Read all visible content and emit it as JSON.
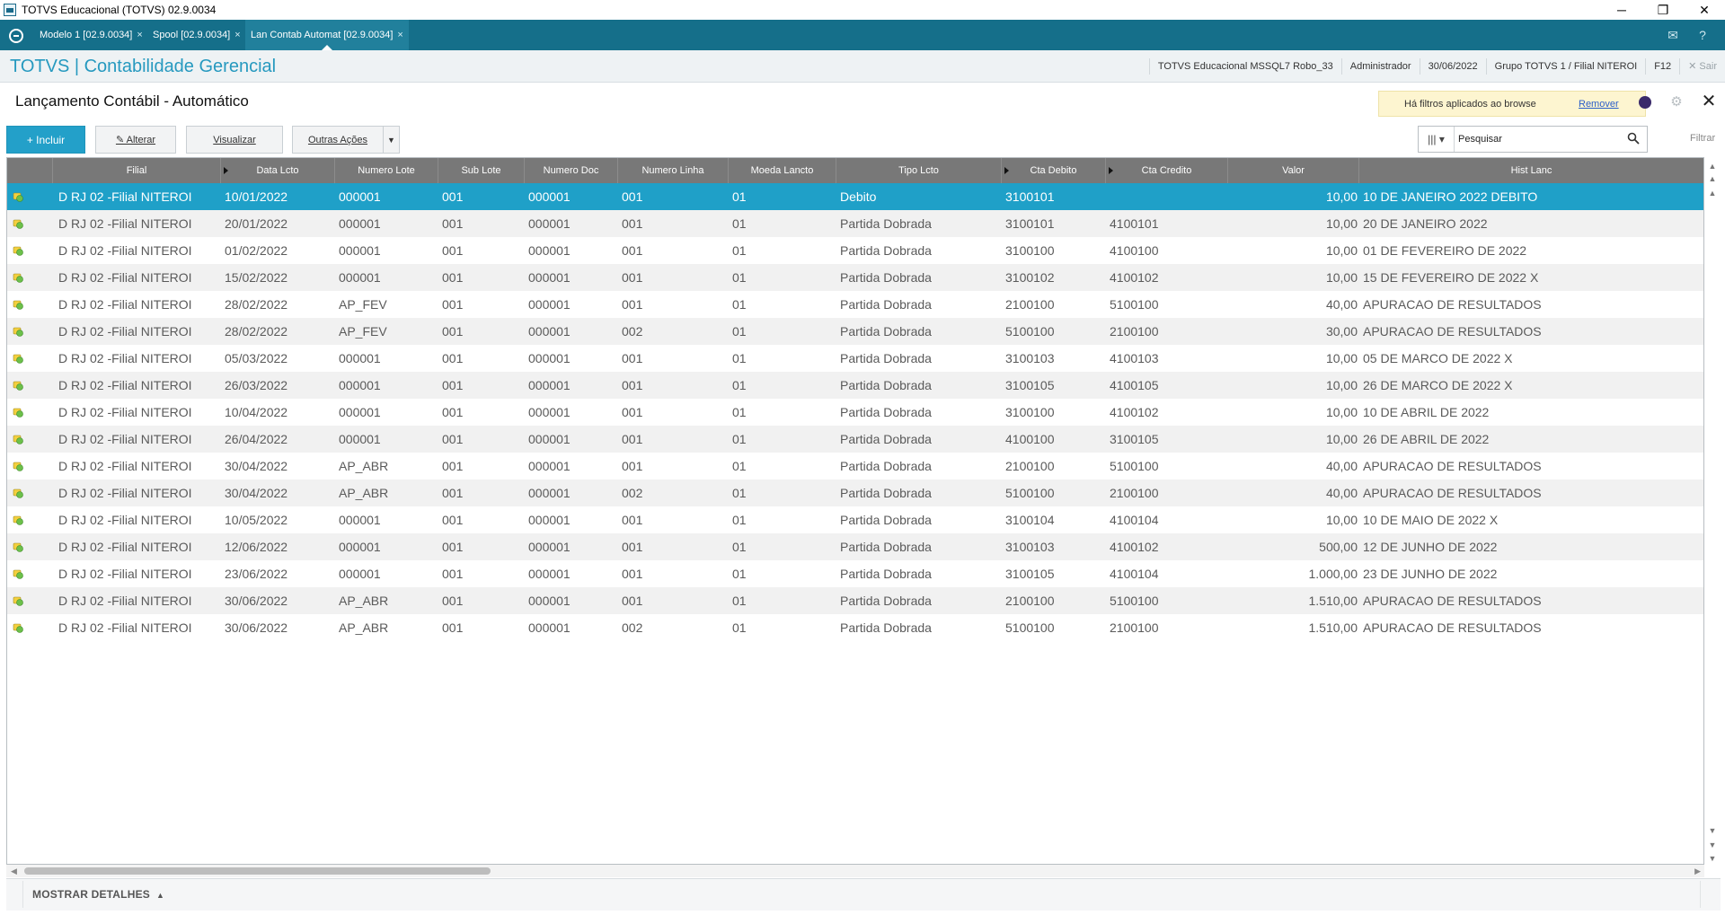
{
  "window": {
    "title": "TOTVS Educacional (TOTVS) 02.9.0034",
    "min": "─",
    "restore": "❐",
    "close": "✕"
  },
  "tabs": [
    {
      "label": "Modelo 1 [02.9.0034]",
      "close": "×"
    },
    {
      "label": "Spool [02.9.0034]",
      "close": "×"
    },
    {
      "label": "Lan Contab Automat [02.9.0034]",
      "close": "×"
    }
  ],
  "tabbar_icons": {
    "mail": "✉",
    "help": "?"
  },
  "module": {
    "brand": "TOTVS | Contabilidade Gerencial",
    "environment": "TOTVS Educacional MSSQL7 Robo_33",
    "user": "Administrador",
    "date": "30/06/2022",
    "branch": "Grupo TOTVS 1 / Filial NITEROI",
    "shortcut": "F12",
    "exit": "✕  Sair"
  },
  "page": {
    "title": "Lançamento Contábil - Automático",
    "filter_notice": "Há filtros aplicados ao browse",
    "filter_remove": "Remover",
    "gear": "⚙",
    "close": "✕"
  },
  "toolbar": {
    "include": "+ Incluir",
    "change": "✎ Alterar",
    "view": "Visualizar",
    "more": "Outras Ações",
    "more_caret": "▼",
    "column_selector": "|||  ▾",
    "search_placeholder": "Pesquisar",
    "filter": "Filtrar"
  },
  "grid": {
    "columns": [
      "",
      "Filial",
      "Data Lcto",
      "Numero Lote",
      "Sub Lote",
      "Numero Doc",
      "Numero Linha",
      "Moeda Lancto",
      "Tipo Lcto",
      "Cta Debito",
      "Cta Credito",
      "Valor",
      "Hist Lanc"
    ],
    "rows": [
      [
        "D RJ 02 -Filial NITEROI",
        "10/01/2022",
        "000001",
        "001",
        "000001",
        "001",
        "01",
        "Debito",
        "3100101",
        "",
        "10,00",
        "10 DE JANEIRO 2022 DEBITO"
      ],
      [
        "D RJ 02 -Filial NITEROI",
        "20/01/2022",
        "000001",
        "001",
        "000001",
        "001",
        "01",
        "Partida Dobrada",
        "3100101",
        "4100101",
        "10,00",
        "20 DE JANEIRO 2022"
      ],
      [
        "D RJ 02 -Filial NITEROI",
        "01/02/2022",
        "000001",
        "001",
        "000001",
        "001",
        "01",
        "Partida Dobrada",
        "3100100",
        "4100100",
        "10,00",
        "01 DE FEVEREIRO DE 2022"
      ],
      [
        "D RJ 02 -Filial NITEROI",
        "15/02/2022",
        "000001",
        "001",
        "000001",
        "001",
        "01",
        "Partida Dobrada",
        "3100102",
        "4100102",
        "10,00",
        "15 DE FEVEREIRO DE 2022 X"
      ],
      [
        "D RJ 02 -Filial NITEROI",
        "28/02/2022",
        "AP_FEV",
        "001",
        "000001",
        "001",
        "01",
        "Partida Dobrada",
        "2100100",
        "5100100",
        "40,00",
        "APURACAO DE RESULTADOS"
      ],
      [
        "D RJ 02 -Filial NITEROI",
        "28/02/2022",
        "AP_FEV",
        "001",
        "000001",
        "002",
        "01",
        "Partida Dobrada",
        "5100100",
        "2100100",
        "30,00",
        "APURACAO DE RESULTADOS"
      ],
      [
        "D RJ 02 -Filial NITEROI",
        "05/03/2022",
        "000001",
        "001",
        "000001",
        "001",
        "01",
        "Partida Dobrada",
        "3100103",
        "4100103",
        "10,00",
        "05 DE MARCO DE 2022 X"
      ],
      [
        "D RJ 02 -Filial NITEROI",
        "26/03/2022",
        "000001",
        "001",
        "000001",
        "001",
        "01",
        "Partida Dobrada",
        "3100105",
        "4100105",
        "10,00",
        "26 DE MARCO DE 2022 X"
      ],
      [
        "D RJ 02 -Filial NITEROI",
        "10/04/2022",
        "000001",
        "001",
        "000001",
        "001",
        "01",
        "Partida Dobrada",
        "3100100",
        "4100102",
        "10,00",
        "10 DE ABRIL DE 2022"
      ],
      [
        "D RJ 02 -Filial NITEROI",
        "26/04/2022",
        "000001",
        "001",
        "000001",
        "001",
        "01",
        "Partida Dobrada",
        "4100100",
        "3100105",
        "10,00",
        "26 DE ABRIL DE 2022"
      ],
      [
        "D RJ 02 -Filial NITEROI",
        "30/04/2022",
        "AP_ABR",
        "001",
        "000001",
        "001",
        "01",
        "Partida Dobrada",
        "2100100",
        "5100100",
        "40,00",
        "APURACAO DE RESULTADOS"
      ],
      [
        "D RJ 02 -Filial NITEROI",
        "30/04/2022",
        "AP_ABR",
        "001",
        "000001",
        "002",
        "01",
        "Partida Dobrada",
        "5100100",
        "2100100",
        "40,00",
        "APURACAO DE RESULTADOS"
      ],
      [
        "D RJ 02 -Filial NITEROI",
        "10/05/2022",
        "000001",
        "001",
        "000001",
        "001",
        "01",
        "Partida Dobrada",
        "3100104",
        "4100104",
        "10,00",
        "10 DE MAIO DE 2022 X"
      ],
      [
        "D RJ 02 -Filial NITEROI",
        "12/06/2022",
        "000001",
        "001",
        "000001",
        "001",
        "01",
        "Partida Dobrada",
        "3100103",
        "4100102",
        "500,00",
        "12 DE JUNHO DE 2022"
      ],
      [
        "D RJ 02 -Filial NITEROI",
        "23/06/2022",
        "000001",
        "001",
        "000001",
        "001",
        "01",
        "Partida Dobrada",
        "3100105",
        "4100104",
        "1.000,00",
        "23 DE JUNHO DE 2022"
      ],
      [
        "D RJ 02 -Filial NITEROI",
        "30/06/2022",
        "AP_ABR",
        "001",
        "000001",
        "001",
        "01",
        "Partida Dobrada",
        "2100100",
        "5100100",
        "1.510,00",
        "APURACAO DE RESULTADOS"
      ],
      [
        "D RJ 02 -Filial NITEROI",
        "30/06/2022",
        "AP_ABR",
        "001",
        "000001",
        "002",
        "01",
        "Partida Dobrada",
        "5100100",
        "2100100",
        "1.510,00",
        "APURACAO DE RESULTADOS"
      ]
    ],
    "selected_row": 0
  },
  "scroll": {
    "up": "▲",
    "down": "▼",
    "left": "◀",
    "right": "▶"
  },
  "footer": {
    "details": "MOSTRAR DETALHES",
    "details_arrow": "▲"
  },
  "colors": {
    "accent": "#1fa0c8",
    "tabbar": "#156f8a",
    "header": "#787878",
    "brand": "#2699bf",
    "legend_green": "#6cc04a",
    "legend_yellow": "#f4d03f"
  }
}
